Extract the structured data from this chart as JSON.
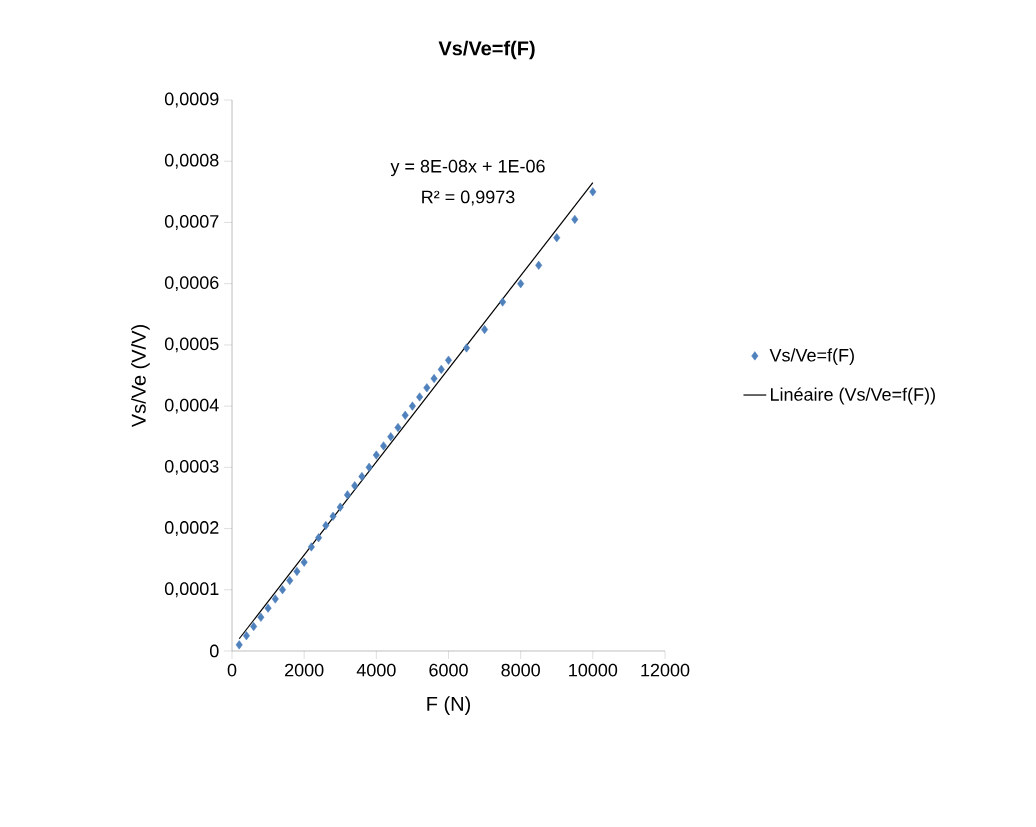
{
  "chart_data": {
    "type": "scatter",
    "title": "Vs/Ve=f(F)",
    "xlabel": "F (N)",
    "ylabel": "Vs/Ve (V/V)",
    "annotations": [
      "y = 8E-08x + 1E-06",
      "R² = 0,9973"
    ],
    "series": [
      {
        "name": "Vs/Ve=f(F)",
        "type": "scatter",
        "color": "#4f81bd",
        "marker": "diamond",
        "x": [
          200,
          400,
          600,
          800,
          1000,
          1200,
          1400,
          1600,
          1800,
          2000,
          2200,
          2400,
          2600,
          2800,
          3000,
          3200,
          3400,
          3600,
          3800,
          4000,
          4200,
          4400,
          4600,
          4800,
          5000,
          5200,
          5400,
          5600,
          5800,
          6000,
          6500,
          7000,
          7500,
          8000,
          8500,
          9000,
          9500,
          10000
        ],
        "values": [
          1e-05,
          2.5e-05,
          4e-05,
          5.5e-05,
          7e-05,
          8.5e-05,
          0.0001,
          0.000115,
          0.00013,
          0.000145,
          0.00017,
          0.000185,
          0.000205,
          0.00022,
          0.000235,
          0.000255,
          0.00027,
          0.000285,
          0.0003,
          0.00032,
          0.000335,
          0.00035,
          0.000365,
          0.000385,
          0.0004,
          0.000415,
          0.00043,
          0.000445,
          0.00046,
          0.000475,
          0.000495,
          0.000525,
          0.00057,
          0.0006,
          0.00063,
          0.000675,
          0.000705,
          0.00075
        ]
      },
      {
        "name": "Linéaire (Vs/Ve=f(F))",
        "type": "line",
        "color": "#000000",
        "marker": "none",
        "line_style": "solid",
        "x": [
          200,
          10000
        ],
        "values": [
          2e-05,
          0.000765
        ]
      }
    ],
    "xlim": [
      0,
      12000
    ],
    "xticks": [
      0,
      2000,
      4000,
      6000,
      8000,
      10000,
      12000
    ],
    "ylim": [
      0,
      0.0009
    ],
    "yticks": [
      0,
      {
        "value": 0.0001,
        "label": "0,0001"
      },
      {
        "value": 0.0002,
        "label": "0,0002"
      },
      {
        "value": 0.0003,
        "label": "0,0003"
      },
      {
        "value": 0.0004,
        "label": "0,0004"
      },
      {
        "value": 0.0005,
        "label": "0,0005"
      },
      {
        "value": 0.0006,
        "label": "0,0006"
      },
      {
        "value": 0.0007,
        "label": "0,0007"
      },
      {
        "value": 0.0008,
        "label": "0,0008"
      },
      {
        "value": 0.0009,
        "label": "0,0009"
      }
    ],
    "grid": false,
    "legend": "right"
  }
}
